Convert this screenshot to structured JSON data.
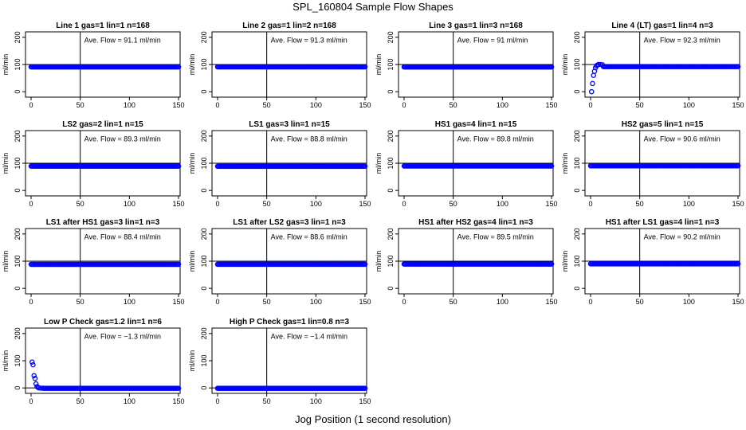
{
  "page": {
    "title": "SPL_160804  Sample Flow Shapes",
    "x_axis_label": "Jog Position (1 second resolution)",
    "y_axis_label": "ml/min"
  },
  "style": {
    "point_color": "#0000ff",
    "axis_color": "#000000"
  },
  "chart_data": [
    {
      "type": "scatter",
      "title": "Line 1 gas=1 lin=1 n=168",
      "annotation": "Ave. Flow = 91.1  ml/min",
      "xlim": [
        0,
        150
      ],
      "ylim": [
        -20,
        220
      ],
      "xticks": [
        0,
        50,
        100,
        150
      ],
      "yticks": [
        0,
        100,
        200
      ],
      "vline": 50,
      "hline": 100,
      "profile": "flat",
      "flat_value": 91.1
    },
    {
      "type": "scatter",
      "title": "Line 2 gas=1 lin=2 n=168",
      "annotation": "Ave. Flow = 91.3  ml/min",
      "xlim": [
        0,
        150
      ],
      "ylim": [
        -20,
        220
      ],
      "xticks": [
        0,
        50,
        100,
        150
      ],
      "yticks": [
        0,
        100,
        200
      ],
      "vline": 50,
      "hline": 100,
      "profile": "flat",
      "flat_value": 91.3
    },
    {
      "type": "scatter",
      "title": "Line 3 gas=1 lin=3 n=168",
      "annotation": "Ave. Flow = 91  ml/min",
      "xlim": [
        0,
        150
      ],
      "ylim": [
        -20,
        220
      ],
      "xticks": [
        0,
        50,
        100,
        150
      ],
      "yticks": [
        0,
        100,
        200
      ],
      "vline": 50,
      "hline": 100,
      "profile": "flat",
      "flat_value": 91
    },
    {
      "type": "scatter",
      "title": "Line 4 (LT) gas=1 lin=4 n=3",
      "annotation": "Ave. Flow = 92.3  ml/min",
      "xlim": [
        0,
        150
      ],
      "ylim": [
        -20,
        220
      ],
      "xticks": [
        0,
        50,
        100,
        150
      ],
      "yticks": [
        0,
        100,
        200
      ],
      "vline": 50,
      "hline": 100,
      "profile": "flat",
      "flat_value": 92.3,
      "initial_points": [
        [
          1,
          0
        ],
        [
          2,
          30
        ],
        [
          3,
          60
        ],
        [
          4,
          75
        ],
        [
          5,
          88
        ],
        [
          6,
          95
        ],
        [
          7,
          98
        ],
        [
          8,
          100
        ],
        [
          10,
          100
        ],
        [
          12,
          99
        ]
      ]
    },
    {
      "type": "scatter",
      "title": "LS2 gas=2 lin=1 n=15",
      "annotation": "Ave. Flow = 89.3  ml/min",
      "xlim": [
        0,
        150
      ],
      "ylim": [
        -20,
        220
      ],
      "xticks": [
        0,
        50,
        100,
        150
      ],
      "yticks": [
        0,
        100,
        200
      ],
      "vline": 50,
      "hline": 100,
      "profile": "flat",
      "flat_value": 89.3
    },
    {
      "type": "scatter",
      "title": "LS1 gas=3 lin=1 n=15",
      "annotation": "Ave. Flow = 88.8  ml/min",
      "xlim": [
        0,
        150
      ],
      "ylim": [
        -20,
        220
      ],
      "xticks": [
        0,
        50,
        100,
        150
      ],
      "yticks": [
        0,
        100,
        200
      ],
      "vline": 50,
      "hline": 100,
      "profile": "flat",
      "flat_value": 88.8
    },
    {
      "type": "scatter",
      "title": "HS1 gas=4 lin=1 n=15",
      "annotation": "Ave. Flow = 89.8  ml/min",
      "xlim": [
        0,
        150
      ],
      "ylim": [
        -20,
        220
      ],
      "xticks": [
        0,
        50,
        100,
        150
      ],
      "yticks": [
        0,
        100,
        200
      ],
      "vline": 50,
      "hline": 100,
      "profile": "flat",
      "flat_value": 89.8
    },
    {
      "type": "scatter",
      "title": "HS2 gas=5 lin=1 n=15",
      "annotation": "Ave. Flow = 90.6  ml/min",
      "xlim": [
        0,
        150
      ],
      "ylim": [
        -20,
        220
      ],
      "xticks": [
        0,
        50,
        100,
        150
      ],
      "yticks": [
        0,
        100,
        200
      ],
      "vline": 50,
      "hline": 100,
      "profile": "flat",
      "flat_value": 90.6
    },
    {
      "type": "scatter",
      "title": "LS1 after HS1 gas=3 lin=1 n=3",
      "annotation": "Ave. Flow = 88.4  ml/min",
      "xlim": [
        0,
        150
      ],
      "ylim": [
        -20,
        220
      ],
      "xticks": [
        0,
        50,
        100,
        150
      ],
      "yticks": [
        0,
        100,
        200
      ],
      "vline": 50,
      "hline": 100,
      "profile": "flat",
      "flat_value": 88.4
    },
    {
      "type": "scatter",
      "title": "LS1 after LS2 gas=3 lin=1 n=3",
      "annotation": "Ave. Flow = 88.6  ml/min",
      "xlim": [
        0,
        150
      ],
      "ylim": [
        -20,
        220
      ],
      "xticks": [
        0,
        50,
        100,
        150
      ],
      "yticks": [
        0,
        100,
        200
      ],
      "vline": 50,
      "hline": 100,
      "profile": "flat",
      "flat_value": 88.6
    },
    {
      "type": "scatter",
      "title": "HS1 after HS2 gas=4 lin=1 n=3",
      "annotation": "Ave. Flow = 89.5  ml/min",
      "xlim": [
        0,
        150
      ],
      "ylim": [
        -20,
        220
      ],
      "xticks": [
        0,
        50,
        100,
        150
      ],
      "yticks": [
        0,
        100,
        200
      ],
      "vline": 50,
      "hline": 100,
      "profile": "flat",
      "flat_value": 89.5
    },
    {
      "type": "scatter",
      "title": "HS1 after LS1 gas=4 lin=1 n=3",
      "annotation": "Ave. Flow = 90.2  ml/min",
      "xlim": [
        0,
        150
      ],
      "ylim": [
        -20,
        220
      ],
      "xticks": [
        0,
        50,
        100,
        150
      ],
      "yticks": [
        0,
        100,
        200
      ],
      "vline": 50,
      "hline": 100,
      "profile": "flat",
      "flat_value": 90.2
    },
    {
      "type": "scatter",
      "title": "Low P Check gas=1.2 lin=1 n=6",
      "annotation": "Ave. Flow = −1.3  ml/min",
      "xlim": [
        0,
        150
      ],
      "ylim": [
        -20,
        220
      ],
      "xticks": [
        0,
        50,
        100,
        150
      ],
      "yticks": [
        0,
        100,
        200
      ],
      "vline": 50,
      "hline": 0,
      "profile": "flat",
      "flat_value": -1.3,
      "initial_points": [
        [
          1,
          95
        ],
        [
          2,
          85
        ],
        [
          3,
          45
        ],
        [
          4,
          35
        ],
        [
          5,
          15
        ],
        [
          6,
          5
        ],
        [
          7,
          2
        ],
        [
          8,
          0
        ],
        [
          10,
          -1
        ],
        [
          12,
          -1
        ]
      ]
    },
    {
      "type": "scatter",
      "title": "High P Check gas=1 lin=0.8 n=3",
      "annotation": "Ave. Flow = −1.4  ml/min",
      "xlim": [
        0,
        150
      ],
      "ylim": [
        -20,
        220
      ],
      "xticks": [
        0,
        50,
        100,
        150
      ],
      "yticks": [
        0,
        100,
        200
      ],
      "vline": 50,
      "hline": 0,
      "profile": "flat",
      "flat_value": -1.4
    }
  ]
}
